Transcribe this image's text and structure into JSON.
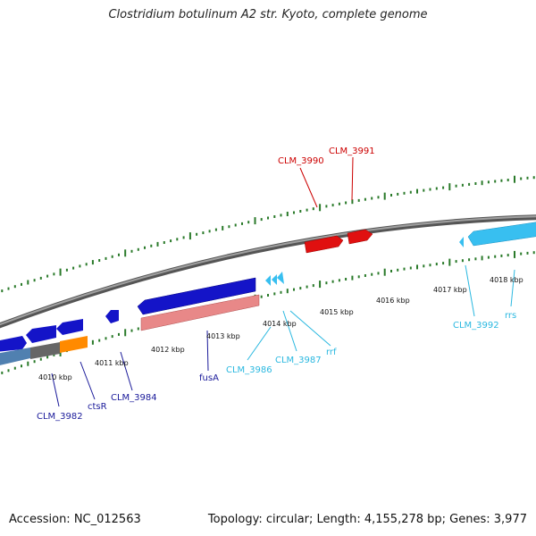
{
  "title": "Clostridium botulinum A2 str. Kyoto, complete genome",
  "footer": {
    "accession": "Accession: NC_012563",
    "summary": "Topology: circular; Length: 4,155,278 bp; Genes: 3,977"
  },
  "colors": {
    "backbone": "#888888",
    "tick": "#2a7a2a",
    "red": "#e01010",
    "dark_blue": "#1414c8",
    "light_blue": "#38bff0",
    "pink": "#e88888",
    "steel_blue": "#5080b0",
    "gray": "#666666",
    "orange": "#ff8a00",
    "label_red": "#cc0000",
    "label_dark_blue": "#1a1a9a",
    "label_cyan": "#2ab8e0"
  },
  "kbp_labels": [
    "4010 kbp",
    "4011 kbp",
    "4012 kbp",
    "4013 kbp",
    "4014 kbp",
    "4015 kbp",
    "4016 kbp",
    "4017 kbp",
    "4018 kbp"
  ],
  "gene_labels": {
    "clm_3990": "CLM_3990",
    "clm_3991": "CLM_3991",
    "clm_3982": "CLM_3982",
    "cts_r": "ctsR",
    "clm_3984": "CLM_3984",
    "fus_a": "fusA",
    "clm_3986": "CLM_3986",
    "clm_3987": "CLM_3987",
    "rrf": "rrf",
    "clm_3992": "CLM_3992",
    "rrs": "rrs"
  }
}
